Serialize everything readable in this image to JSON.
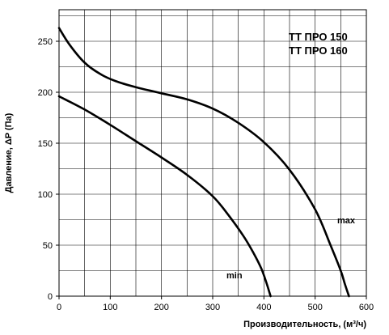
{
  "chart_data": {
    "type": "line",
    "title_lines": [
      "TT ПРО 150",
      "TT ПРО 160"
    ],
    "xlabel": "Производительность, (м³/ч)",
    "ylabel": "Давление, ΔP (Па)",
    "xlim": [
      0,
      600
    ],
    "ylim": [
      0,
      270
    ],
    "x_ticks": [
      0,
      100,
      200,
      300,
      400,
      500,
      600
    ],
    "y_ticks": [
      0,
      50,
      100,
      150,
      200,
      250
    ],
    "grid": true,
    "series": [
      {
        "name": "max",
        "x": [
          0,
          20,
          50,
          80,
          110,
          150,
          200,
          250,
          300,
          350,
          400,
          450,
          500,
          530,
          550,
          558,
          566
        ],
        "y": [
          263,
          247,
          229,
          218,
          211,
          205,
          199,
          193,
          184,
          170,
          151,
          124,
          85,
          50,
          25,
          12,
          0
        ]
      },
      {
        "name": "min",
        "x": [
          0,
          50,
          100,
          150,
          200,
          250,
          300,
          330,
          360,
          380,
          395,
          405,
          413
        ],
        "y": [
          196,
          183,
          168,
          152,
          136,
          119,
          98,
          80,
          59,
          42,
          27,
          13,
          0
        ]
      }
    ]
  }
}
